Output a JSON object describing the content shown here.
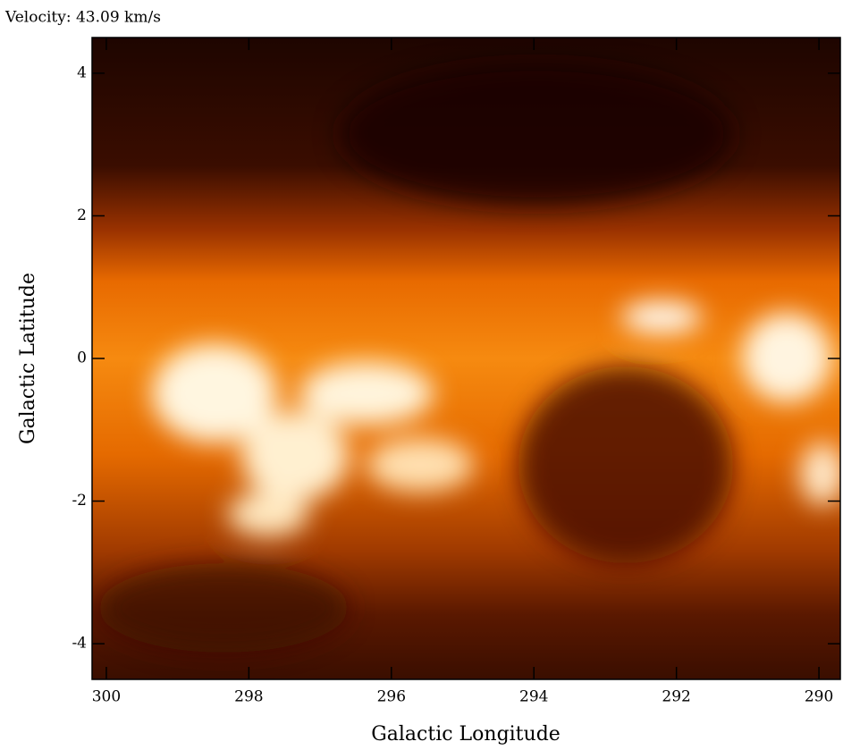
{
  "chart_data": {
    "type": "image",
    "title": "Velocity: 43.09 km/s",
    "x_label": "Galactic Longitude",
    "y_label": "Galactic Latitude",
    "xlim": [
      300.2,
      289.7
    ],
    "xticks": [
      300,
      298,
      296,
      294,
      292,
      290
    ],
    "ylim": [
      -4.5,
      4.5
    ],
    "yticks": [
      4,
      2,
      0,
      -2,
      -4
    ]
  }
}
